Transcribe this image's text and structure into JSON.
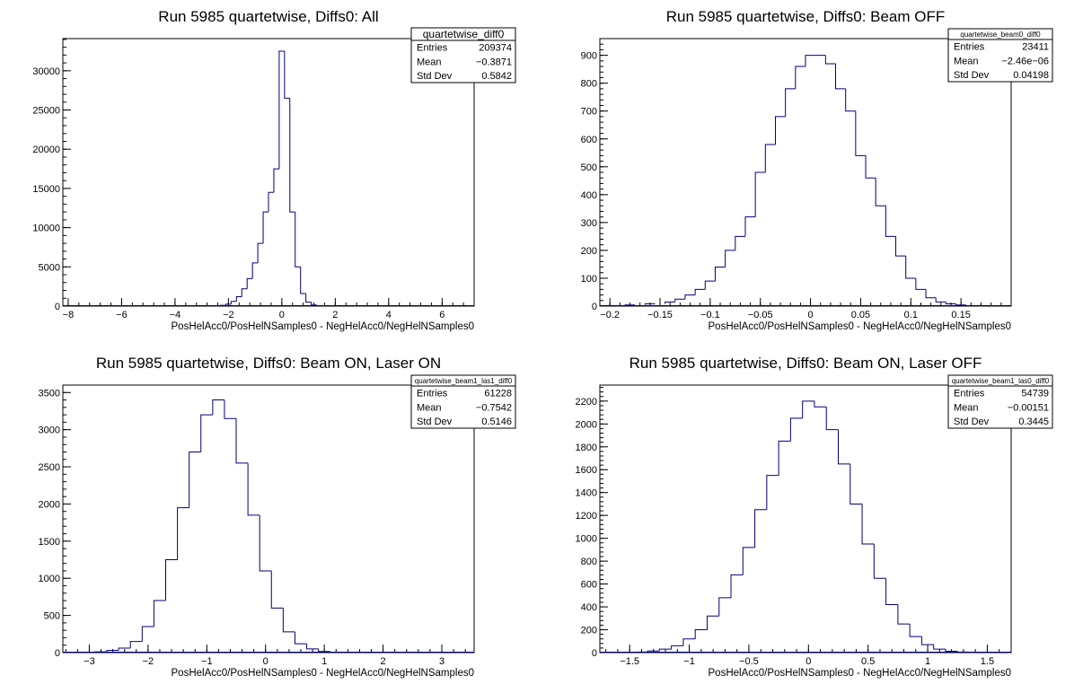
{
  "chart_data": [
    {
      "type": "bar",
      "title": "Run 5985 quartetwise, Diffs0: All",
      "xlabel": "PosHelAcc0/PosHelNSamples0 - NegHelAcc0/NegHelNSamples0",
      "ylabel": "",
      "xlim": [
        -8.2,
        7.2
      ],
      "ylim": [
        0,
        34100
      ],
      "xticks": [
        -8,
        -6,
        -4,
        -2,
        0,
        2,
        4,
        6
      ],
      "xtick_labels": [
        "−8",
        "−6",
        "−4",
        "−2",
        "0",
        "2",
        "4",
        "6"
      ],
      "yticks": [
        0,
        5000,
        10000,
        15000,
        20000,
        25000,
        30000
      ],
      "ytick_labels": [
        "0",
        "5000",
        "10000",
        "15000",
        "20000",
        "25000",
        "30000"
      ],
      "stats": {
        "name": "quartetwise_diff0",
        "rows": [
          {
            "label": "Entries",
            "value": "209374"
          },
          {
            "label": "Mean",
            "value": "−0.3871"
          },
          {
            "label": "Std Dev",
            "value": "0.5842"
          }
        ]
      },
      "x": [
        -2.6,
        -2.4,
        -2.2,
        -2.0,
        -1.8,
        -1.6,
        -1.4,
        -1.2,
        -1.0,
        -0.8,
        -0.6,
        -0.4,
        -0.2,
        0.0,
        0.2,
        0.4,
        0.6,
        0.8,
        1.0,
        1.2
      ],
      "bin_width": 0.2,
      "values": [
        20,
        60,
        100,
        250,
        600,
        1200,
        2200,
        3500,
        5500,
        8000,
        12000,
        14500,
        17500,
        32500,
        26500,
        12000,
        5000,
        1600,
        500,
        150
      ]
    },
    {
      "type": "bar",
      "title": "Run 5985 quartetwise, Diffs0: Beam OFF",
      "xlabel": "PosHelAcc0/PosHelNSamples0 - NegHelAcc0/NegHelNSamples0",
      "ylabel": "",
      "xlim": [
        -0.21,
        0.2
      ],
      "ylim": [
        0,
        960
      ],
      "xticks": [
        -0.2,
        -0.15,
        -0.1,
        -0.05,
        0,
        0.05,
        0.1,
        0.15
      ],
      "xtick_labels": [
        "−0.2",
        "−0.15",
        "−0.1",
        "−0.05",
        "0",
        "0.05",
        "0.1",
        "0.15"
      ],
      "yticks": [
        0,
        100,
        200,
        300,
        400,
        500,
        600,
        700,
        800,
        900
      ],
      "ytick_labels": [
        "0",
        "100",
        "200",
        "300",
        "400",
        "500",
        "600",
        "700",
        "800",
        "900"
      ],
      "stats": {
        "name": "quartetwise_beam0_diff0",
        "rows": [
          {
            "label": "Entries",
            "value": "23411"
          },
          {
            "label": "Mean",
            "value": "−2.46e−06"
          },
          {
            "label": "Std Dev",
            "value": "0.04198"
          }
        ]
      },
      "x": [
        -0.2,
        -0.18,
        -0.16,
        -0.14,
        -0.13,
        -0.12,
        -0.11,
        -0.1,
        -0.09,
        -0.08,
        -0.07,
        -0.06,
        -0.05,
        -0.04,
        -0.03,
        -0.02,
        -0.01,
        0.0,
        0.01,
        0.02,
        0.03,
        0.04,
        0.05,
        0.06,
        0.07,
        0.08,
        0.09,
        0.1,
        0.11,
        0.12,
        0.13,
        0.14,
        0.15
      ],
      "bin_width": 0.01,
      "values": [
        2,
        4,
        8,
        15,
        25,
        40,
        60,
        90,
        140,
        200,
        250,
        320,
        480,
        580,
        680,
        780,
        860,
        900,
        900,
        870,
        780,
        700,
        540,
        460,
        360,
        250,
        180,
        100,
        60,
        30,
        15,
        8,
        4
      ]
    },
    {
      "type": "bar",
      "title": "Run 5985 quartetwise, Diffs0: Beam ON, Laser ON",
      "xlabel": "PosHelAcc0/PosHelNSamples0 - NegHelAcc0/NegHelNSamples0",
      "ylabel": "",
      "xlim": [
        -3.45,
        3.55
      ],
      "ylim": [
        0,
        3600
      ],
      "xticks": [
        -3,
        -2,
        -1,
        0,
        1,
        2,
        3
      ],
      "xtick_labels": [
        "−3",
        "−2",
        "−1",
        "0",
        "1",
        "2",
        "3"
      ],
      "yticks": [
        0,
        500,
        1000,
        1500,
        2000,
        2500,
        3000,
        3500
      ],
      "ytick_labels": [
        "0",
        "500",
        "1000",
        "1500",
        "2000",
        "2500",
        "3000",
        "3500"
      ],
      "stats": {
        "name": "quartetwise_beam1_las1_diff0",
        "rows": [
          {
            "label": "Entries",
            "value": "61228"
          },
          {
            "label": "Mean",
            "value": "−0.7542"
          },
          {
            "label": "Std Dev",
            "value": "0.5146"
          }
        ]
      },
      "x": [
        -2.8,
        -2.6,
        -2.4,
        -2.2,
        -2.0,
        -1.8,
        -1.6,
        -1.4,
        -1.2,
        -1.0,
        -0.8,
        -0.6,
        -0.4,
        -0.2,
        0.0,
        0.2,
        0.4,
        0.6,
        0.8,
        1.0
      ],
      "bin_width": 0.2,
      "values": [
        10,
        30,
        60,
        150,
        350,
        700,
        1250,
        1950,
        2700,
        3200,
        3400,
        3150,
        2550,
        1850,
        1100,
        600,
        280,
        120,
        50,
        15
      ]
    },
    {
      "type": "bar",
      "title": "Run 5985 quartetwise, Diffs0: Beam ON, Laser OFF",
      "xlabel": "PosHelAcc0/PosHelNSamples0 - NegHelAcc0/NegHelNSamples0",
      "ylabel": "",
      "xlim": [
        -1.75,
        1.7
      ],
      "ylim": [
        0,
        2340
      ],
      "xticks": [
        -1.5,
        -1,
        -0.5,
        0,
        0.5,
        1,
        1.5
      ],
      "xtick_labels": [
        "−1.5",
        "−1",
        "−0.5",
        "0",
        "0.5",
        "1",
        "1.5"
      ],
      "yticks": [
        0,
        200,
        400,
        600,
        800,
        1000,
        1200,
        1400,
        1600,
        1800,
        2000,
        2200
      ],
      "ytick_labels": [
        "0",
        "200",
        "400",
        "600",
        "800",
        "1000",
        "1200",
        "1400",
        "1600",
        "1800",
        "2000",
        "2200"
      ],
      "stats": {
        "name": "quartetwise_beam1_las0_diff0",
        "rows": [
          {
            "label": "Entries",
            "value": "54739"
          },
          {
            "label": "Mean",
            "value": "−0.00151"
          },
          {
            "label": "Std Dev",
            "value": "0.3445"
          }
        ]
      },
      "x": [
        -1.4,
        -1.3,
        -1.2,
        -1.1,
        -1.0,
        -0.9,
        -0.8,
        -0.7,
        -0.6,
        -0.5,
        -0.4,
        -0.3,
        -0.2,
        -0.1,
        0.0,
        0.1,
        0.2,
        0.3,
        0.4,
        0.5,
        0.6,
        0.7,
        0.8,
        0.9,
        1.0,
        1.1,
        1.2,
        1.3
      ],
      "bin_width": 0.1,
      "values": [
        5,
        15,
        30,
        60,
        120,
        200,
        320,
        480,
        680,
        920,
        1250,
        1550,
        1850,
        2050,
        2200,
        2150,
        1950,
        1650,
        1300,
        950,
        650,
        420,
        250,
        140,
        70,
        30,
        12,
        5
      ]
    }
  ]
}
